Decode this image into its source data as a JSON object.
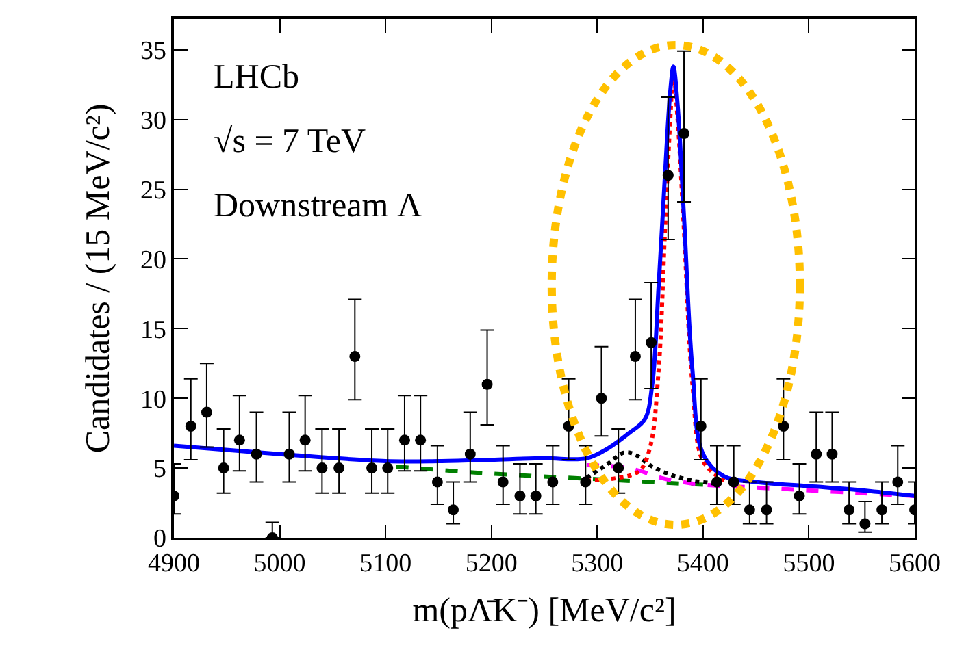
{
  "chart_data": {
    "type": "line",
    "xlabel": "m(pΛ̄K⁻) [MeV/c²]",
    "ylabel": "Candidates / (15 MeV/c²)",
    "annotations": [
      "LHCb",
      "√s = 7 TeV",
      "Downstream Λ"
    ],
    "x": [
      4900,
      4916,
      4931,
      4947,
      4962,
      4978,
      4993,
      5009,
      5024,
      5040,
      5056,
      5071,
      5087,
      5102,
      5118,
      5133,
      5149,
      5164,
      5180,
      5196,
      5211,
      5227,
      5242,
      5258,
      5273,
      5289,
      5304,
      5320,
      5336,
      5351,
      5367,
      5382,
      5398,
      5413,
      5429,
      5444,
      5460,
      5476,
      5491,
      5507,
      5522,
      5538,
      5553,
      5569,
      5584,
      5600
    ],
    "series": [
      {
        "type": "scatter",
        "color": "#000000",
        "marker": "circle",
        "values": [
          3,
          8,
          9,
          5,
          7,
          6,
          0,
          6,
          7,
          5,
          5,
          13,
          5,
          5,
          7,
          7,
          4,
          2,
          6,
          11,
          4,
          3,
          3,
          4,
          8,
          4,
          10,
          5,
          13,
          14,
          26,
          29,
          8,
          4,
          4,
          2,
          2,
          8,
          3,
          6,
          6,
          2,
          1,
          2,
          4,
          2
        ],
        "errors": [
          [
            1.7,
            5.3
          ],
          [
            5.6,
            11.4
          ],
          [
            6.5,
            12.5
          ],
          [
            3.2,
            7.8
          ],
          [
            4.8,
            10.2
          ],
          [
            4.0,
            9.0
          ],
          [
            0,
            1.1
          ],
          [
            4.0,
            9.0
          ],
          [
            4.8,
            10.2
          ],
          [
            3.2,
            7.8
          ],
          [
            3.2,
            7.8
          ],
          [
            9.9,
            17.1
          ],
          [
            3.2,
            7.8
          ],
          [
            3.2,
            7.8
          ],
          [
            4.8,
            10.2
          ],
          [
            4.8,
            10.2
          ],
          [
            2.4,
            6.6
          ],
          [
            1.0,
            4.0
          ],
          [
            4.0,
            9.0
          ],
          [
            8.1,
            14.9
          ],
          [
            2.4,
            6.6
          ],
          [
            1.7,
            5.3
          ],
          [
            1.7,
            5.3
          ],
          [
            2.4,
            6.6
          ],
          [
            5.6,
            11.4
          ],
          [
            2.4,
            6.6
          ],
          [
            7.3,
            13.7
          ],
          [
            3.2,
            7.8
          ],
          [
            9.9,
            17.1
          ],
          [
            10.7,
            18.3
          ],
          [
            21.4,
            31.6
          ],
          [
            24.1,
            34.9
          ],
          [
            5.6,
            11.4
          ],
          [
            2.4,
            6.6
          ],
          [
            2.4,
            6.6
          ],
          [
            1.0,
            4.0
          ],
          [
            1.0,
            4.0
          ],
          [
            5.6,
            11.4
          ],
          [
            1.7,
            5.3
          ],
          [
            4.0,
            9.0
          ],
          [
            4.0,
            9.0
          ],
          [
            1.0,
            4.0
          ],
          [
            0.4,
            2.6
          ],
          [
            1.0,
            4.0
          ],
          [
            2.4,
            6.6
          ],
          [
            1.0,
            4.0
          ]
        ]
      },
      {
        "color": "#008000",
        "line_style": "dashed",
        "x": [
          5110,
          5200,
          5300,
          5400
        ],
        "values": [
          5.1,
          4.6,
          4.2,
          3.8
        ]
      },
      {
        "color": "#ff00ff",
        "line_style": "dashed",
        "x": [
          5290,
          5320,
          5340,
          5360,
          5380,
          5400,
          5450,
          5500,
          5550,
          5600
        ],
        "values": [
          5.2,
          5.1,
          4.8,
          4.3,
          4.0,
          3.8,
          3.6,
          3.4,
          3.2,
          3.0
        ]
      },
      {
        "color": "#000000",
        "line_style": "dotted",
        "x": [
          5290,
          5310,
          5325,
          5335,
          5350,
          5370,
          5390,
          5410
        ],
        "values": [
          4.3,
          5.3,
          6.1,
          6.0,
          5.2,
          4.5,
          4.1,
          3.9
        ]
      },
      {
        "color": "#ff0000",
        "line_style": "dotted",
        "x": [
          5290,
          5320,
          5340,
          5350,
          5358,
          5364,
          5369,
          5372,
          5376,
          5382,
          5390,
          5400,
          5420
        ],
        "values": [
          4.1,
          4.3,
          4.8,
          6.5,
          12,
          22,
          30,
          33.3,
          30,
          22,
          11,
          5.5,
          4.1
        ]
      },
      {
        "color": "#0000ff",
        "line_style": "solid",
        "x": [
          4900,
          5000,
          5100,
          5150,
          5200,
          5250,
          5290,
          5310,
          5330,
          5345,
          5352,
          5358,
          5364,
          5369,
          5372,
          5376,
          5382,
          5390,
          5400,
          5420,
          5450,
          5500,
          5550,
          5600
        ],
        "values": [
          6.6,
          6.0,
          5.5,
          5.5,
          5.6,
          5.7,
          5.7,
          6.4,
          7.5,
          8.5,
          11,
          18,
          26,
          32,
          33.8,
          31,
          23,
          12,
          6,
          4.4,
          4.0,
          3.7,
          3.4,
          3.0
        ]
      }
    ],
    "xlim": [
      4900,
      5600
    ],
    "xticks": [
      4900,
      5000,
      5100,
      5200,
      5300,
      5400,
      5500,
      5600
    ],
    "ylim": [
      0,
      37.2
    ],
    "yticks": [
      0,
      5,
      10,
      15,
      20,
      25,
      30,
      35
    ]
  }
}
